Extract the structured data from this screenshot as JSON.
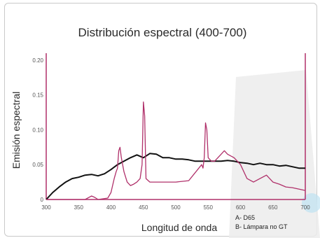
{
  "chart_data": {
    "type": "line",
    "title": "Distribución espectral (400-700)",
    "xlabel": "Longitud de onda",
    "ylabel": "Emisión espectral",
    "x_ticks": [
      "300",
      "350",
      "400",
      "450",
      "500",
      "550",
      "600",
      "650",
      "700"
    ],
    "y_ticks": [
      "0",
      "0.05",
      "0.10",
      "0.15",
      "0.20"
    ],
    "xlim": [
      300,
      700
    ],
    "ylim": [
      0,
      0.21
    ],
    "legend": [
      "A- D65",
      "B- Lámpara no GT"
    ],
    "series": [
      {
        "name": "A- D65",
        "color": "#111111",
        "points": [
          [
            300,
            0.0
          ],
          [
            310,
            0.01
          ],
          [
            320,
            0.018
          ],
          [
            330,
            0.025
          ],
          [
            340,
            0.03
          ],
          [
            350,
            0.032
          ],
          [
            360,
            0.035
          ],
          [
            370,
            0.036
          ],
          [
            380,
            0.034
          ],
          [
            390,
            0.037
          ],
          [
            400,
            0.043
          ],
          [
            410,
            0.05
          ],
          [
            420,
            0.055
          ],
          [
            430,
            0.06
          ],
          [
            440,
            0.064
          ],
          [
            450,
            0.06
          ],
          [
            460,
            0.066
          ],
          [
            470,
            0.065
          ],
          [
            480,
            0.06
          ],
          [
            490,
            0.06
          ],
          [
            500,
            0.058
          ],
          [
            510,
            0.058
          ],
          [
            520,
            0.057
          ],
          [
            530,
            0.055
          ],
          [
            540,
            0.055
          ],
          [
            550,
            0.055
          ],
          [
            560,
            0.055
          ],
          [
            570,
            0.055
          ],
          [
            580,
            0.056
          ],
          [
            590,
            0.055
          ],
          [
            600,
            0.053
          ],
          [
            610,
            0.052
          ],
          [
            620,
            0.05
          ],
          [
            630,
            0.052
          ],
          [
            640,
            0.05
          ],
          [
            650,
            0.05
          ],
          [
            660,
            0.048
          ],
          [
            670,
            0.049
          ],
          [
            680,
            0.047
          ],
          [
            690,
            0.045
          ],
          [
            700,
            0.045
          ]
        ]
      },
      {
        "name": "B- Lámpara no GT",
        "color": "#b0306a",
        "points": [
          [
            300,
            0.0
          ],
          [
            360,
            0.0
          ],
          [
            370,
            0.005
          ],
          [
            375,
            0.003
          ],
          [
            380,
            0.0
          ],
          [
            395,
            0.002
          ],
          [
            400,
            0.01
          ],
          [
            405,
            0.03
          ],
          [
            408,
            0.04
          ],
          [
            410,
            0.045
          ],
          [
            412,
            0.07
          ],
          [
            414,
            0.075
          ],
          [
            416,
            0.06
          ],
          [
            420,
            0.04
          ],
          [
            425,
            0.025
          ],
          [
            430,
            0.02
          ],
          [
            435,
            0.022
          ],
          [
            440,
            0.025
          ],
          [
            445,
            0.03
          ],
          [
            448,
            0.05
          ],
          [
            450,
            0.14
          ],
          [
            452,
            0.12
          ],
          [
            454,
            0.03
          ],
          [
            460,
            0.025
          ],
          [
            470,
            0.025
          ],
          [
            480,
            0.025
          ],
          [
            500,
            0.025
          ],
          [
            520,
            0.027
          ],
          [
            540,
            0.05
          ],
          [
            542,
            0.045
          ],
          [
            544,
            0.06
          ],
          [
            546,
            0.11
          ],
          [
            548,
            0.1
          ],
          [
            550,
            0.06
          ],
          [
            555,
            0.055
          ],
          [
            560,
            0.055
          ],
          [
            570,
            0.065
          ],
          [
            575,
            0.07
          ],
          [
            580,
            0.065
          ],
          [
            590,
            0.06
          ],
          [
            600,
            0.05
          ],
          [
            610,
            0.03
          ],
          [
            620,
            0.025
          ],
          [
            630,
            0.03
          ],
          [
            640,
            0.035
          ],
          [
            650,
            0.025
          ],
          [
            660,
            0.022
          ],
          [
            670,
            0.018
          ],
          [
            680,
            0.017
          ],
          [
            690,
            0.015
          ],
          [
            700,
            0.013
          ]
        ]
      }
    ],
    "grid": false
  }
}
